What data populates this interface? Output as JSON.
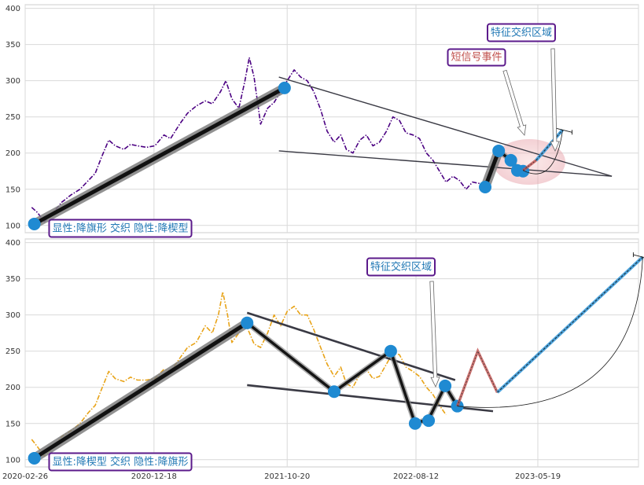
{
  "chart_data": [
    {
      "type": "line",
      "panel": "top",
      "ylim": [
        90,
        405
      ],
      "yticks": [
        "100",
        "150",
        "200",
        "250",
        "300",
        "350",
        "400"
      ],
      "grid": true,
      "series": [
        {
          "role": "price",
          "color": "#4b0082",
          "style": "dash-dot"
        }
      ],
      "price_path": [
        [
          "2020-03-12",
          125
        ],
        [
          "2020-03-25",
          118
        ],
        [
          "2020-04-10",
          105
        ],
        [
          "2020-05-01",
          118
        ],
        [
          "2020-05-20",
          132
        ],
        [
          "2020-06-10",
          142
        ],
        [
          "2020-07-01",
          150
        ],
        [
          "2020-07-20",
          162
        ],
        [
          "2020-08-05",
          172
        ],
        [
          "2020-08-20",
          195
        ],
        [
          "2020-09-05",
          218
        ],
        [
          "2020-09-20",
          210
        ],
        [
          "2020-10-10",
          205
        ],
        [
          "2020-10-25",
          212
        ],
        [
          "2020-11-10",
          210
        ],
        [
          "2020-12-01",
          208
        ],
        [
          "2020-12-20",
          210
        ],
        [
          "2021-01-10",
          225
        ],
        [
          "2021-01-25",
          220
        ],
        [
          "2021-02-15",
          240
        ],
        [
          "2021-03-05",
          255
        ],
        [
          "2021-03-25",
          265
        ],
        [
          "2021-04-15",
          272
        ],
        [
          "2021-05-01",
          268
        ],
        [
          "2021-05-20",
          285
        ],
        [
          "2021-06-01",
          300
        ],
        [
          "2021-06-15",
          275
        ],
        [
          "2021-07-01",
          262
        ],
        [
          "2021-07-15",
          300
        ],
        [
          "2021-07-25",
          332
        ],
        [
          "2021-08-05",
          305
        ],
        [
          "2021-08-20",
          240
        ],
        [
          "2021-09-05",
          262
        ],
        [
          "2021-09-20",
          270
        ],
        [
          "2021-10-05",
          285
        ],
        [
          "2021-10-20",
          300
        ],
        [
          "2021-11-05",
          315
        ],
        [
          "2021-11-20",
          305
        ],
        [
          "2021-12-05",
          300
        ],
        [
          "2021-12-20",
          285
        ],
        [
          "2022-01-05",
          260
        ],
        [
          "2022-01-20",
          230
        ],
        [
          "2022-02-05",
          215
        ],
        [
          "2022-02-20",
          225
        ],
        [
          "2022-03-05",
          205
        ],
        [
          "2022-03-20",
          200
        ],
        [
          "2022-04-05",
          218
        ],
        [
          "2022-04-20",
          225
        ],
        [
          "2022-05-05",
          210
        ],
        [
          "2022-05-20",
          215
        ],
        [
          "2022-06-05",
          230
        ],
        [
          "2022-06-20",
          250
        ],
        [
          "2022-07-05",
          245
        ],
        [
          "2022-07-20",
          228
        ],
        [
          "2022-08-05",
          225
        ],
        [
          "2022-08-20",
          220
        ],
        [
          "2022-09-05",
          200
        ],
        [
          "2022-09-20",
          190
        ],
        [
          "2022-10-05",
          175
        ],
        [
          "2022-10-20",
          160
        ],
        [
          "2022-11-05",
          168
        ],
        [
          "2022-11-20",
          162
        ],
        [
          "2022-12-05",
          150
        ],
        [
          "2022-12-20",
          160
        ],
        [
          "2023-01-05",
          158
        ],
        [
          "2023-01-18",
          152
        ]
      ],
      "pattern_points": [
        [
          "2020-03-18",
          102
        ],
        [
          "2021-10-14",
          290
        ],
        [
          "2023-01-18",
          153
        ],
        [
          "2023-02-18",
          203
        ],
        [
          "2023-03-18",
          190
        ],
        [
          "2023-04-02",
          176
        ],
        [
          "2023-04-15",
          175
        ]
      ],
      "thick_segments": [
        [
          0,
          1
        ],
        [
          2,
          3
        ]
      ],
      "zigzag": [
        [
          "2023-02-18",
          203
        ],
        [
          "2023-03-18",
          190
        ],
        [
          "2023-04-02",
          178
        ],
        [
          "2023-04-15",
          176
        ]
      ],
      "trend_lines": [
        [
          [
            "2021-10-01",
            305
          ],
          [
            "2023-11-05",
            168
          ]
        ],
        [
          [
            "2021-10-01",
            203
          ],
          [
            "2023-11-05",
            168
          ]
        ]
      ],
      "projection_up": [
        [
          "2023-05-15",
          190
        ],
        [
          "2023-07-15",
          232
        ]
      ],
      "projection_down": [
        [
          "2023-04-15",
          176
        ],
        [
          "2023-05-15",
          190
        ]
      ],
      "annotations": [
        {
          "text": "显性:降旗形 交织 隐性:降楔型",
          "color": "#1f77b4",
          "at": "bottom-left"
        },
        {
          "text": "特征交织区域",
          "color": "#1f77b4",
          "at": "top-right"
        },
        {
          "text": "短信号事件",
          "color": "#c0504d",
          "at": "top-right"
        }
      ]
    },
    {
      "type": "line",
      "panel": "bottom",
      "ylim": [
        90,
        405
      ],
      "yticks": [
        "100",
        "150",
        "200",
        "250",
        "300",
        "350",
        "400"
      ],
      "x_tick_labels": [
        "2020-02-26",
        "2020-12-18",
        "2021-10-20",
        "2022-08-12",
        "2023-05-19"
      ],
      "grid": true,
      "series": [
        {
          "role": "price",
          "color": "#e8a317",
          "style": "dash-dot"
        }
      ],
      "price_path": [
        [
          "2020-03-12",
          128
        ],
        [
          "2020-03-25",
          118
        ],
        [
          "2020-04-10",
          105
        ],
        [
          "2020-05-01",
          118
        ],
        [
          "2020-05-20",
          132
        ],
        [
          "2020-06-10",
          140
        ],
        [
          "2020-07-01",
          150
        ],
        [
          "2020-07-20",
          165
        ],
        [
          "2020-08-05",
          175
        ],
        [
          "2020-08-20",
          198
        ],
        [
          "2020-09-05",
          222
        ],
        [
          "2020-09-20",
          212
        ],
        [
          "2020-10-10",
          208
        ],
        [
          "2020-10-25",
          214
        ],
        [
          "2020-11-10",
          210
        ],
        [
          "2020-12-01",
          210
        ],
        [
          "2020-12-20",
          212
        ],
        [
          "2021-01-10",
          225
        ],
        [
          "2021-01-25",
          222
        ],
        [
          "2021-02-15",
          240
        ],
        [
          "2021-03-05",
          255
        ],
        [
          "2021-03-25",
          262
        ],
        [
          "2021-04-15",
          285
        ],
        [
          "2021-05-01",
          275
        ],
        [
          "2021-05-15",
          300
        ],
        [
          "2021-05-25",
          332
        ],
        [
          "2021-06-05",
          300
        ],
        [
          "2021-06-15",
          262
        ],
        [
          "2021-07-01",
          275
        ],
        [
          "2021-07-15",
          290
        ],
        [
          "2021-08-05",
          260
        ],
        [
          "2021-08-20",
          255
        ],
        [
          "2021-09-05",
          275
        ],
        [
          "2021-09-20",
          300
        ],
        [
          "2021-10-05",
          285
        ],
        [
          "2021-10-20",
          305
        ],
        [
          "2021-11-05",
          312
        ],
        [
          "2021-11-20",
          300
        ],
        [
          "2021-12-05",
          300
        ],
        [
          "2021-12-20",
          280
        ],
        [
          "2022-01-05",
          255
        ],
        [
          "2022-01-20",
          232
        ],
        [
          "2022-02-05",
          215
        ],
        [
          "2022-02-20",
          228
        ],
        [
          "2022-03-05",
          205
        ],
        [
          "2022-03-20",
          200
        ],
        [
          "2022-04-05",
          218
        ],
        [
          "2022-04-20",
          225
        ],
        [
          "2022-05-05",
          212
        ],
        [
          "2022-05-20",
          215
        ],
        [
          "2022-06-05",
          232
        ],
        [
          "2022-06-20",
          248
        ],
        [
          "2022-07-05",
          245
        ],
        [
          "2022-07-20",
          228
        ],
        [
          "2022-08-05",
          222
        ],
        [
          "2022-08-20",
          215
        ],
        [
          "2022-09-05",
          200
        ],
        [
          "2022-09-20",
          190
        ],
        [
          "2022-10-05",
          175
        ],
        [
          "2022-10-20",
          162
        ]
      ],
      "pattern_points": [
        [
          "2020-03-18",
          102
        ],
        [
          "2021-07-20",
          289
        ],
        [
          "2022-02-05",
          194
        ],
        [
          "2022-06-15",
          250
        ],
        [
          "2022-08-10",
          150
        ],
        [
          "2022-09-10",
          154
        ],
        [
          "2022-10-18",
          202
        ],
        [
          "2022-11-15",
          174
        ]
      ],
      "thick_segments": [
        [
          0,
          1
        ]
      ],
      "zigzag": [
        [
          "2021-07-20",
          289
        ],
        [
          "2022-02-05",
          194
        ],
        [
          "2022-06-15",
          250
        ],
        [
          "2022-08-10",
          150
        ],
        [
          "2022-09-10",
          156
        ],
        [
          "2022-10-18",
          202
        ],
        [
          "2022-11-15",
          174
        ]
      ],
      "trend_lines": [
        [
          [
            "2021-07-20",
            303
          ],
          [
            "2022-11-10",
            210
          ]
        ],
        [
          [
            "2021-07-20",
            203
          ],
          [
            "2023-02-05",
            167
          ]
        ]
      ],
      "projection_down": [
        [
          "2022-11-15",
          174
        ],
        [
          "2023-01-01",
          250
        ],
        [
          "2023-02-15",
          193
        ]
      ],
      "projection_up": [
        [
          "2023-02-15",
          193
        ],
        [
          "2024-01-15",
          380
        ]
      ],
      "annotations": [
        {
          "text": "显性:降楔型 交织 隐性:降旗形",
          "color": "#1f77b4",
          "at": "bottom-left"
        },
        {
          "text": "特征交织区域",
          "color": "#1f77b4",
          "at": "top-middle"
        }
      ]
    }
  ]
}
